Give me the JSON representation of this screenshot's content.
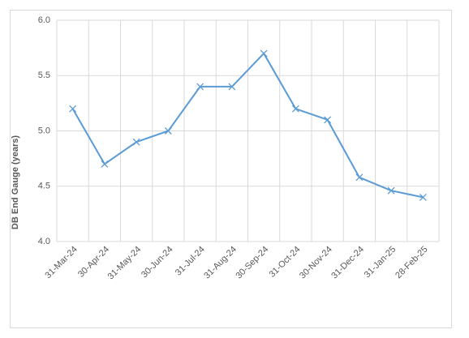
{
  "chart_data": {
    "type": "line",
    "y_label": "DB End Gauge (years)",
    "categories": [
      "31-Mar-24",
      "30-Apr-24",
      "31-May-24",
      "30-Jun-24",
      "31-Jul-24",
      "31-Aug-24",
      "30-Sep-24",
      "31-Oct-24",
      "30-Nov-24",
      "31-Dec-24",
      "31-Jan-25",
      "28-Feb-25"
    ],
    "values": [
      5.2,
      4.7,
      4.9,
      5.0,
      5.4,
      5.4,
      5.7,
      5.2,
      5.1,
      4.58,
      4.46,
      4.4
    ],
    "color": "#5b9bd5",
    "ylim": [
      4,
      6
    ],
    "yticks": [
      {
        "value": 4,
        "label": "4.0"
      },
      4.5,
      {
        "value": 5,
        "label": "5.0"
      },
      5.5,
      {
        "value": 6,
        "label": "6.0"
      }
    ],
    "grid": true
  }
}
